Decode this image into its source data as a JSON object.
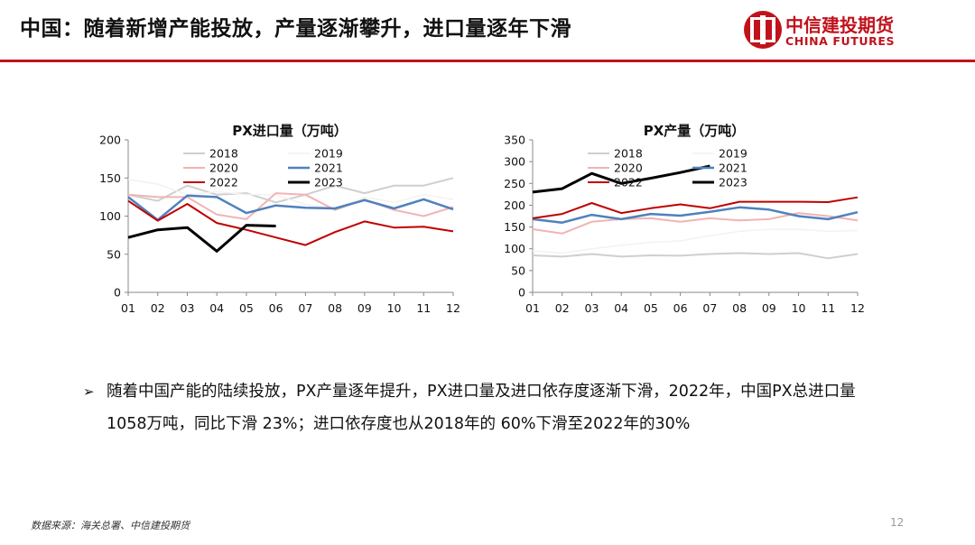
{
  "header": {
    "title": "中国：随着新增产能投放，产量逐渐攀升，进口量逐年下滑",
    "logo_cn": "中信建投期货",
    "logo_en": "CHINA FUTURES"
  },
  "colors": {
    "brand_red": "#c1121c"
  },
  "bullet": {
    "marker": "➢",
    "text": "随着中国产能的陆续投放，PX产量逐年提升，PX进口量及进口依存度逐渐下滑，2022年，中国PX总进口量 1058万吨，同比下滑 23%；进口依存度也从2018年的 60%下滑至2022年的30%"
  },
  "footer": {
    "source": "数据来源：海关总署、中信建投期货",
    "page_number": "12"
  },
  "chart_data": [
    {
      "type": "line",
      "title": "PX进口量（万吨）",
      "categories": [
        "01",
        "02",
        "03",
        "04",
        "05",
        "06",
        "07",
        "08",
        "09",
        "10",
        "11",
        "12"
      ],
      "ylim": [
        0,
        200
      ],
      "yticks": [
        0,
        50,
        100,
        150,
        200
      ],
      "grid": false,
      "legend_position": "top",
      "series": [
        {
          "name": "2018",
          "color": "#cfcfcf",
          "width": 2,
          "values": [
            128,
            120,
            140,
            128,
            130,
            118,
            128,
            140,
            130,
            140,
            140,
            150
          ]
        },
        {
          "name": "2019",
          "color": "#f2f2f2",
          "width": 1.5,
          "values": [
            148,
            142,
            128,
            132,
            128,
            128,
            115,
            110,
            125,
            118,
            128,
            122
          ]
        },
        {
          "name": "2020",
          "color": "#f2b3b3",
          "width": 2,
          "values": [
            128,
            125,
            125,
            102,
            96,
            130,
            128,
            108,
            122,
            108,
            100,
            112
          ]
        },
        {
          "name": "2021",
          "color": "#4f81bd",
          "width": 2.5,
          "values": [
            125,
            95,
            127,
            125,
            104,
            114,
            111,
            110,
            121,
            110,
            122,
            109
          ]
        },
        {
          "name": "2022",
          "color": "#c00000",
          "width": 2,
          "values": [
            120,
            94,
            116,
            91,
            82,
            72,
            62,
            79,
            93,
            85,
            86,
            80
          ]
        },
        {
          "name": "2023",
          "color": "#000000",
          "width": 3,
          "values": [
            72,
            82,
            85,
            54,
            88,
            87,
            null,
            null,
            null,
            null,
            null,
            null
          ]
        }
      ]
    },
    {
      "type": "line",
      "title": "PX产量（万吨）",
      "categories": [
        "01",
        "02",
        "03",
        "04",
        "05",
        "06",
        "07",
        "08",
        "09",
        "10",
        "11",
        "12"
      ],
      "ylim": [
        0,
        350
      ],
      "yticks": [
        0,
        50,
        100,
        150,
        200,
        250,
        300,
        350
      ],
      "grid": false,
      "legend_position": "top",
      "series": [
        {
          "name": "2018",
          "color": "#cfcfcf",
          "width": 2,
          "values": [
            85,
            82,
            88,
            82,
            85,
            84,
            88,
            90,
            88,
            90,
            78,
            88
          ]
        },
        {
          "name": "2019",
          "color": "#f2f2f2",
          "width": 1.5,
          "values": [
            95,
            90,
            100,
            108,
            115,
            118,
            130,
            140,
            145,
            145,
            140,
            142
          ]
        },
        {
          "name": "2020",
          "color": "#f2b3b3",
          "width": 2,
          "values": [
            145,
            135,
            162,
            168,
            170,
            162,
            170,
            165,
            168,
            182,
            175,
            165
          ]
        },
        {
          "name": "2021",
          "color": "#4f81bd",
          "width": 2.5,
          "values": [
            168,
            160,
            178,
            168,
            180,
            176,
            185,
            195,
            190,
            175,
            168,
            184
          ]
        },
        {
          "name": "2022",
          "color": "#c00000",
          "width": 2,
          "values": [
            170,
            180,
            205,
            182,
            193,
            202,
            193,
            208,
            208,
            208,
            207,
            218
          ]
        },
        {
          "name": "2023",
          "color": "#000000",
          "width": 3,
          "values": [
            230,
            238,
            273,
            250,
            262,
            275,
            290,
            null,
            null,
            null,
            null,
            null
          ]
        }
      ]
    }
  ]
}
